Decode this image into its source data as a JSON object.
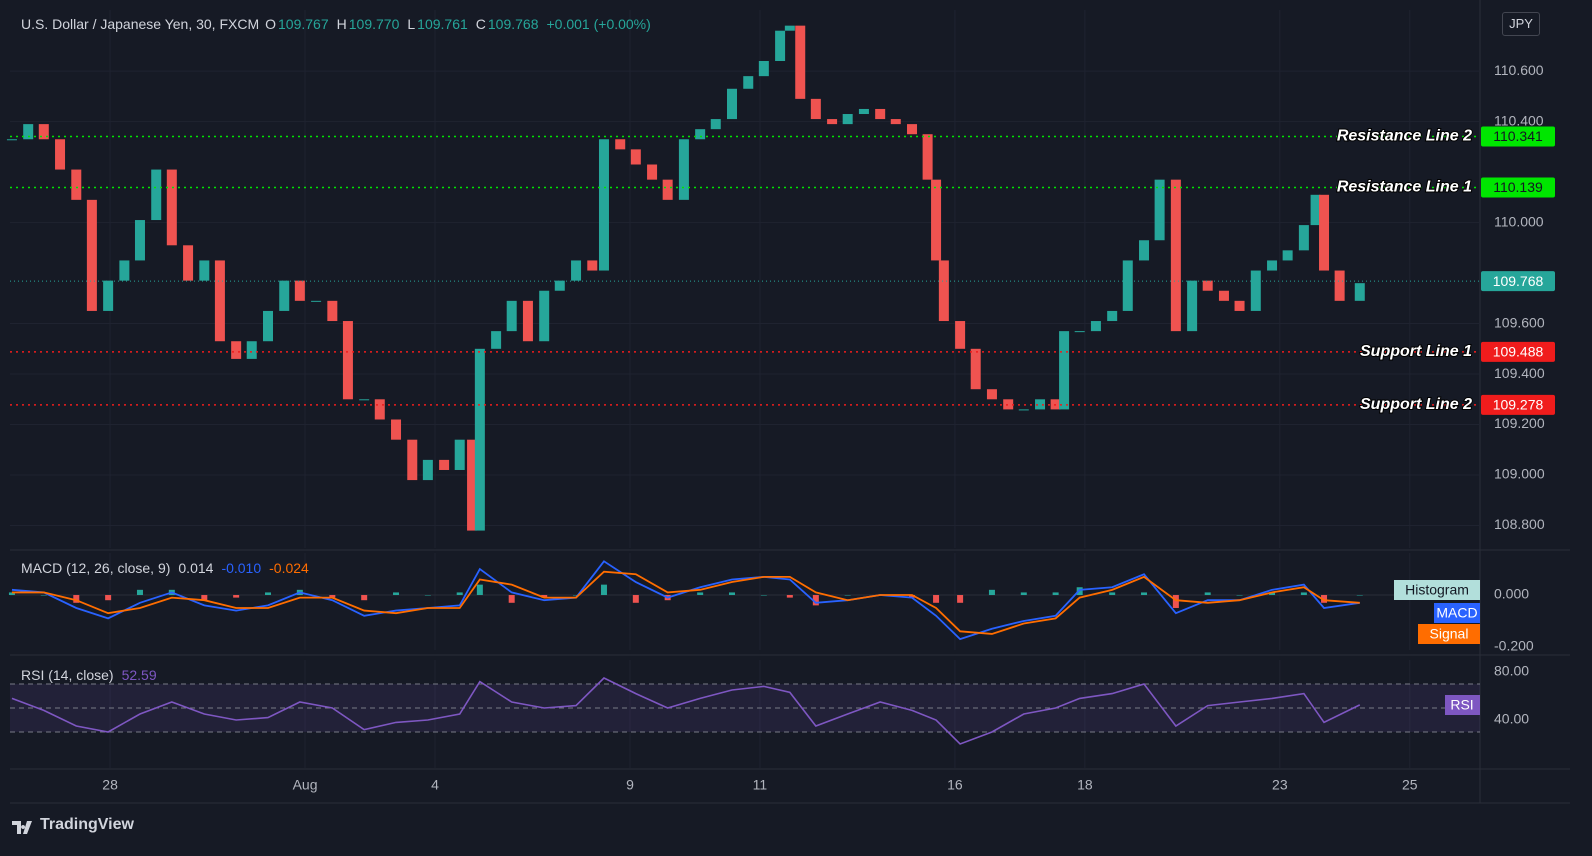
{
  "chart_data": [
    {
      "type": "candlestick",
      "title": "U.S. Dollar / Japanese Yen, 30, FXCM",
      "ohlc": [
        {
          "name": "O",
          "value": "109.767"
        },
        {
          "name": "H",
          "value": "109.770"
        },
        {
          "name": "L",
          "value": "109.761"
        },
        {
          "name": "C",
          "value": "109.768"
        }
      ],
      "change": "+0.001 (+0.00%)",
      "currency": "JPY",
      "x": [
        -1.51,
        -1.26,
        -1.02,
        -0.77,
        -0.52,
        -0.28,
        -0.03,
        0.22,
        0.46,
        0.71,
        0.95,
        1.2,
        1.45,
        1.69,
        1.94,
        2.18,
        2.43,
        2.68,
        2.92,
        3.17,
        3.42,
        3.66,
        3.91,
        4.15,
        4.4,
        4.65,
        4.89,
        5.14,
        5.38,
        5.57,
        5.69,
        5.94,
        6.18,
        6.43,
        6.68,
        6.92,
        7.17,
        7.42,
        7.6,
        7.85,
        8.09,
        8.34,
        8.58,
        8.83,
        9.08,
        9.32,
        9.57,
        9.82,
        10.06,
        10.31,
        10.46,
        10.62,
        10.86,
        11.11,
        11.35,
        11.6,
        11.85,
        12.09,
        12.34,
        12.58,
        12.71,
        12.83,
        13.08,
        13.32,
        13.57,
        13.82,
        14.06,
        14.31,
        14.55,
        14.68,
        14.92,
        15.17,
        15.42,
        15.66,
        15.91,
        16.15,
        16.4,
        16.65,
        16.89,
        17.14,
        17.38,
        17.63,
        17.88,
        18.12,
        18.37,
        18.55,
        18.68,
        18.92,
        19.23
      ],
      "close": [
        110.33,
        110.39,
        110.33,
        110.21,
        110.09,
        109.65,
        109.77,
        109.85,
        110.01,
        110.21,
        109.91,
        109.77,
        109.85,
        109.53,
        109.46,
        109.53,
        109.65,
        109.77,
        109.69,
        109.69,
        109.61,
        109.3,
        109.3,
        109.22,
        109.14,
        108.98,
        109.06,
        109.02,
        109.14,
        108.78,
        109.5,
        109.57,
        109.69,
        109.53,
        109.73,
        109.77,
        109.85,
        109.81,
        110.33,
        110.29,
        110.23,
        110.17,
        110.09,
        110.33,
        110.37,
        110.41,
        110.53,
        110.58,
        110.64,
        110.76,
        110.78,
        110.49,
        110.41,
        110.39,
        110.43,
        110.45,
        110.41,
        110.39,
        110.35,
        110.17,
        109.85,
        109.61,
        109.5,
        109.34,
        109.3,
        109.26,
        109.26,
        109.3,
        109.26,
        109.57,
        109.57,
        109.61,
        109.65,
        109.85,
        109.93,
        110.17,
        109.57,
        109.77,
        109.73,
        109.69,
        109.65,
        109.81,
        109.85,
        109.89,
        109.99,
        110.11,
        109.81,
        109.69,
        109.76
      ],
      "up_color": "#26a69a",
      "down_color": "#ef5350",
      "xlim": [
        -1.54,
        21.08
      ],
      "xticks": [
        {
          "value": 0,
          "label": "28"
        },
        {
          "value": 3,
          "label": "Aug"
        },
        {
          "value": 5,
          "label": "4"
        },
        {
          "value": 8,
          "label": "9"
        },
        {
          "value": 10,
          "label": "11"
        },
        {
          "value": 13,
          "label": "16"
        },
        {
          "value": 15,
          "label": "18"
        },
        {
          "value": 18,
          "label": "23"
        },
        {
          "value": 20,
          "label": "25"
        }
      ],
      "ylim": [
        108.711,
        110.842
      ],
      "yticks": [
        {
          "value": 108.8,
          "label": "108.800"
        },
        {
          "value": 109.0,
          "label": "109.000"
        },
        {
          "value": 109.2,
          "label": "109.200"
        },
        {
          "value": 109.4,
          "label": "109.400"
        },
        {
          "value": 109.6,
          "label": "109.600"
        },
        {
          "value": 110.0,
          "label": "110.000"
        },
        {
          "value": 110.4,
          "label": "110.400"
        },
        {
          "value": 110.6,
          "label": "110.600"
        }
      ],
      "grid": true,
      "levels": [
        {
          "name": "Resistance Line 2",
          "value": 110.341,
          "color": "#00e600",
          "label_text_color": "#131722"
        },
        {
          "name": "Resistance Line 1",
          "value": 110.139,
          "color": "#00e600",
          "label_text_color": "#131722"
        },
        {
          "name": "Support Line 1",
          "value": 109.488,
          "color": "#f01c1c",
          "label_text_color": "#ffffff"
        },
        {
          "name": "Support Line 2",
          "value": 109.278,
          "color": "#f01c1c",
          "label_text_color": "#ffffff"
        }
      ],
      "last_price": 109.768,
      "last_price_color": "#26a69a"
    },
    {
      "type": "macd",
      "title": "MACD (12, 26, close, 9)",
      "readout": [
        "0.014",
        "-0.010",
        "-0.024"
      ],
      "x": [
        -1.51,
        -1.02,
        -0.52,
        -0.03,
        0.46,
        0.95,
        1.45,
        1.94,
        2.43,
        2.92,
        3.42,
        3.91,
        4.4,
        4.89,
        5.38,
        5.69,
        6.18,
        6.68,
        7.17,
        7.6,
        8.09,
        8.58,
        9.08,
        9.57,
        10.06,
        10.46,
        10.86,
        11.35,
        11.85,
        12.34,
        12.71,
        13.08,
        13.57,
        14.06,
        14.55,
        14.92,
        15.42,
        15.91,
        16.4,
        16.89,
        17.38,
        17.88,
        18.37,
        18.68,
        19.23
      ],
      "series": [
        {
          "name": "Histogram",
          "color": "#26a69a",
          "negative_color": "#ef5350",
          "values": [
            0.01,
            0,
            -0.03,
            -0.02,
            0.02,
            0.02,
            -0.02,
            -0.01,
            0.01,
            0.02,
            -0.01,
            -0.02,
            0.01,
            0,
            0.01,
            0.04,
            -0.03,
            -0.01,
            0,
            0.04,
            -0.03,
            -0.02,
            0.01,
            0.01,
            0,
            -0.01,
            -0.04,
            0,
            0,
            -0.01,
            -0.03,
            -0.03,
            0.02,
            0.01,
            0.01,
            0.03,
            0.01,
            0.01,
            -0.05,
            0.01,
            0,
            0.01,
            0.01,
            -0.03,
            0
          ]
        },
        {
          "name": "MACD",
          "color": "#2962ff",
          "values": [
            0.02,
            0.01,
            -0.05,
            -0.09,
            -0.03,
            0.01,
            -0.04,
            -0.06,
            -0.04,
            0.01,
            -0.02,
            -0.08,
            -0.06,
            -0.05,
            -0.04,
            0.1,
            0.01,
            -0.02,
            -0.01,
            0.13,
            0.05,
            -0.01,
            0.03,
            0.06,
            0.07,
            0.06,
            -0.03,
            -0.02,
            0.0,
            -0.01,
            -0.08,
            -0.17,
            -0.13,
            -0.1,
            -0.08,
            0.02,
            0.03,
            0.08,
            -0.07,
            -0.02,
            -0.02,
            0.02,
            0.04,
            -0.05,
            -0.03
          ]
        },
        {
          "name": "Signal",
          "color": "#ff6d00",
          "values": [
            0.01,
            0.01,
            -0.02,
            -0.07,
            -0.05,
            -0.01,
            -0.02,
            -0.05,
            -0.05,
            -0.01,
            -0.01,
            -0.06,
            -0.07,
            -0.05,
            -0.05,
            0.06,
            0.04,
            -0.01,
            -0.01,
            0.09,
            0.08,
            0.01,
            0.02,
            0.05,
            0.07,
            0.07,
            0.01,
            -0.02,
            0.0,
            0.0,
            -0.05,
            -0.14,
            -0.15,
            -0.11,
            -0.09,
            -0.01,
            0.02,
            0.07,
            -0.02,
            -0.03,
            -0.02,
            0.01,
            0.03,
            -0.02,
            -0.03
          ]
        }
      ],
      "ylim": [
        -0.212,
        0.162
      ],
      "yticks": [
        {
          "value": 0,
          "label": "0.000"
        },
        {
          "value": -0.2,
          "label": "-0.200"
        }
      ]
    },
    {
      "type": "rsi",
      "title": "RSI (14, close)",
      "readout": "52.59",
      "x": [
        -1.51,
        -1.02,
        -0.52,
        -0.03,
        0.46,
        0.95,
        1.45,
        1.94,
        2.43,
        2.92,
        3.42,
        3.91,
        4.4,
        4.89,
        5.38,
        5.69,
        6.18,
        6.68,
        7.17,
        7.6,
        8.09,
        8.58,
        9.08,
        9.57,
        10.06,
        10.46,
        10.86,
        11.35,
        11.85,
        12.34,
        12.71,
        13.08,
        13.57,
        14.06,
        14.55,
        14.92,
        15.42,
        15.91,
        16.4,
        16.89,
        17.38,
        17.88,
        18.37,
        18.68,
        19.23
      ],
      "series": [
        {
          "name": "RSI",
          "color": "#7e57c2",
          "values": [
            58,
            48,
            35,
            30,
            45,
            55,
            45,
            40,
            42,
            55,
            50,
            32,
            38,
            40,
            45,
            72,
            55,
            50,
            52,
            75,
            62,
            50,
            58,
            65,
            68,
            63,
            35,
            45,
            55,
            48,
            40,
            20,
            30,
            45,
            50,
            58,
            62,
            70,
            35,
            52,
            55,
            58,
            62,
            38,
            52.59
          ]
        }
      ],
      "bands": [
        30,
        50,
        70
      ],
      "ylim": [
        0,
        90
      ],
      "yticks": [
        {
          "value": 80,
          "label": "80.00"
        },
        {
          "value": 40,
          "label": "40.00"
        }
      ]
    }
  ],
  "brand": "TradingView"
}
